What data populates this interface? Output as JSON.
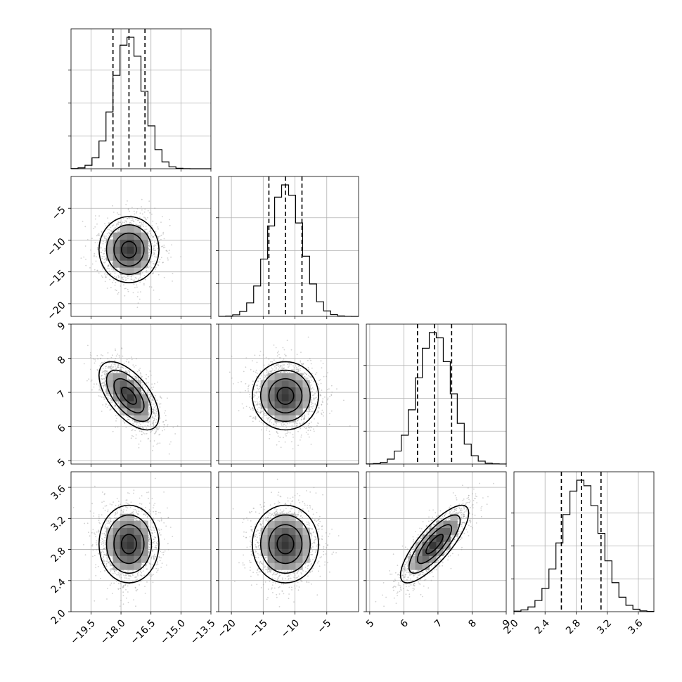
{
  "chart_data": {
    "type": "corner",
    "parameters": [
      {
        "mean": -17.6,
        "sd": 0.75,
        "range": [
          -20.5,
          -13.5
        ],
        "ticks": [
          -19.5,
          -18.0,
          -16.5,
          -15.0,
          -13.5
        ],
        "tick_labels": [
          "−19.5",
          "−18.0",
          "−16.5",
          "−15.0",
          "−13.5"
        ],
        "quantiles": [
          -18.4,
          -17.6,
          -16.8
        ]
      },
      {
        "mean": -11.5,
        "sd": 2.6,
        "range": [
          -22,
          0
        ],
        "ticks": [
          -20,
          -15,
          -10,
          -5
        ],
        "tick_labels": [
          "−20",
          "−15",
          "−10",
          "−5"
        ],
        "quantiles": [
          -14.1,
          -11.5,
          -8.9
        ]
      },
      {
        "mean": 6.9,
        "sd": 0.5,
        "range": [
          4.9,
          9.0
        ],
        "ticks": [
          5,
          6,
          7,
          8,
          9
        ],
        "tick_labels": [
          "5",
          "6",
          "7",
          "8",
          "9"
        ],
        "quantiles": [
          6.4,
          6.9,
          7.4
        ]
      },
      {
        "mean": 2.87,
        "sd": 0.25,
        "range": [
          2.0,
          3.8
        ],
        "ticks": [
          2.0,
          2.4,
          2.8,
          3.2,
          3.6
        ],
        "tick_labels": [
          "2.0",
          "2.4",
          "2.8",
          "3.2",
          "3.6"
        ],
        "quantiles": [
          2.61,
          2.87,
          3.12
        ]
      }
    ],
    "row_y_ticks": [
      null,
      {
        "ticks": [
          -20,
          -15,
          -10,
          -5
        ],
        "tick_labels": [
          "−20",
          "−15",
          "−10",
          "−5"
        ]
      },
      {
        "ticks": [
          5,
          6,
          7,
          8,
          9
        ],
        "tick_labels": [
          "5",
          "6",
          "7",
          "8",
          "9"
        ]
      },
      {
        "ticks": [
          2.0,
          2.4,
          2.8,
          3.2,
          3.6
        ],
        "tick_labels": [
          "2.0",
          "2.4",
          "2.8",
          "3.2",
          "3.6"
        ]
      }
    ],
    "correlations": [
      [
        1.0,
        0.0,
        -0.6,
        0.0
      ],
      [
        0.0,
        1.0,
        0.0,
        0.0
      ],
      [
        -0.6,
        0.0,
        1.0,
        0.8
      ],
      [
        0.0,
        0.0,
        0.8,
        1.0
      ]
    ],
    "histogram_bins": 20,
    "contour_levels_sigma": [
      0.5,
      1.0,
      1.5,
      2.0
    ],
    "grid": true,
    "title": "",
    "colors": {
      "line": "#000000",
      "quantile": "#000000",
      "grid": "#b0b0b0",
      "scatter": "#9a9a9a"
    }
  }
}
